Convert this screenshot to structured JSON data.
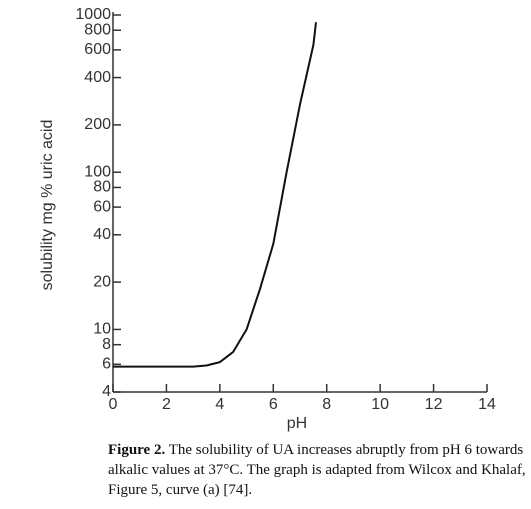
{
  "chart_data": {
    "type": "line",
    "x_label": "pH",
    "y_label": "solubility mg % uric acid",
    "x": [
      0,
      1,
      2,
      3,
      3.5,
      4,
      4.5,
      5,
      5.5,
      6,
      6.5,
      7,
      7.5,
      7.6
    ],
    "series": [
      {
        "name": "curve (a)",
        "color": "#111111",
        "values": [
          5.8,
          5.8,
          5.8,
          5.8,
          5.9,
          6.2,
          7.2,
          10,
          18,
          35,
          100,
          270,
          645,
          900
        ]
      }
    ],
    "xlim": [
      0,
      14
    ],
    "xticks": [
      0,
      2,
      4,
      6,
      8,
      10,
      12,
      14
    ],
    "ylim": [
      4,
      1000
    ],
    "yticks": [
      4,
      6,
      8,
      10,
      20,
      40,
      60,
      80,
      100,
      200,
      400,
      600,
      800,
      1000
    ],
    "log_y": true
  },
  "caption": {
    "label": "Figure 2.",
    "text": "The solubility of UA increases abruptly from pH 6 towards alkalic values at 37°C. The graph is adapted from Wilcox and Khalaf, Figure 5, curve (a) [74]."
  }
}
